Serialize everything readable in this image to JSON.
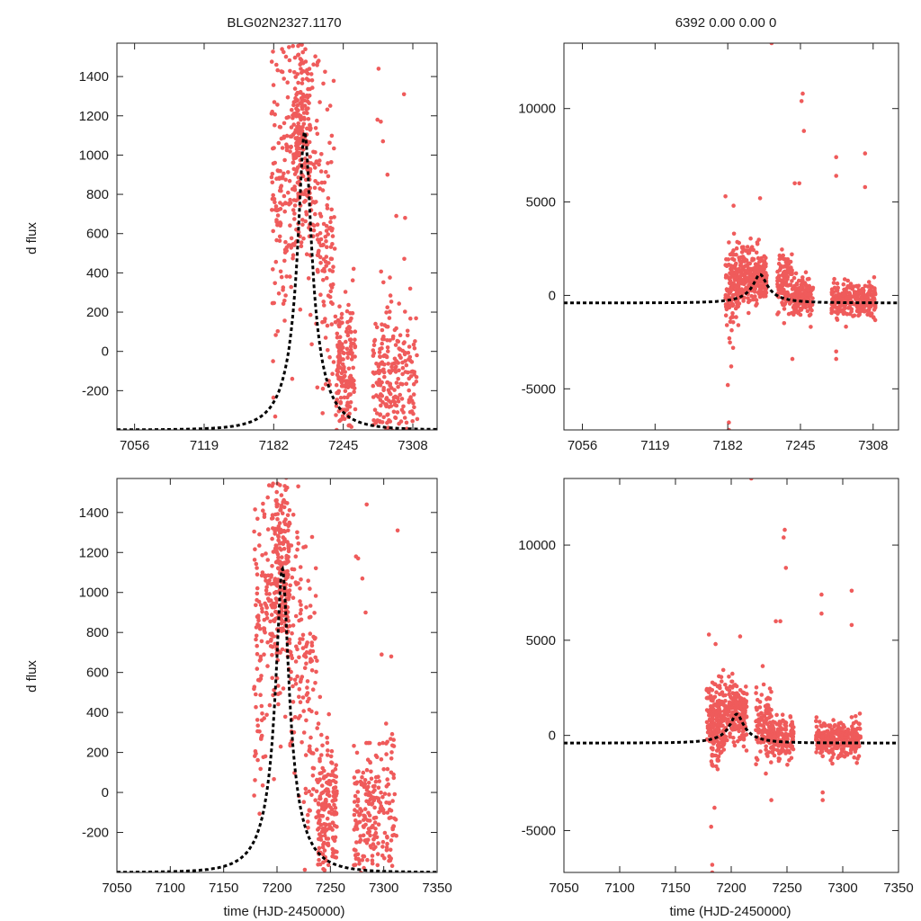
{
  "header": {
    "left_title": "BLG02N2327.1170",
    "right_title": "6392  0.00  0.00  0"
  },
  "colors": {
    "points": "#ef5b5b",
    "model": "#000000"
  },
  "chart_data": [
    {
      "id": "top-left",
      "type": "scatter",
      "title": "BLG02N2327.1170",
      "ylabel": "d flux",
      "xlabel": "",
      "xlim": [
        7040,
        7330
      ],
      "ylim": [
        -400,
        1570
      ],
      "xticks": [
        7056,
        7119,
        7182,
        7245,
        7308
      ],
      "xtick_labels": [
        "7056",
        "7119",
        "7182",
        "7245",
        "7308"
      ],
      "yticks": [
        -200,
        0,
        200,
        400,
        600,
        800,
        1000,
        1200,
        1400
      ],
      "ytick_labels": [
        "-200",
        "0",
        "200",
        "400",
        "600",
        "800",
        "1000",
        "1200",
        "1400"
      ],
      "model": {
        "t0": 7210,
        "peak": 1120,
        "base": -400,
        "u0": 0.18,
        "tE": 32
      },
      "segments": [
        {
          "x0": 7180,
          "x1": 7192,
          "n": 90,
          "mu": 820,
          "sd": 420
        },
        {
          "x0": 7192,
          "x1": 7200,
          "n": 60,
          "mu": 980,
          "sd": 320
        },
        {
          "x0": 7200,
          "x1": 7215,
          "n": 230,
          "mu": 1090,
          "sd": 260
        },
        {
          "x0": 7215,
          "x1": 7226,
          "n": 70,
          "mu": 870,
          "sd": 380
        },
        {
          "x0": 7226,
          "x1": 7238,
          "n": 80,
          "mu": 450,
          "sd": 380
        },
        {
          "x0": 7238,
          "x1": 7256,
          "n": 190,
          "mu": -120,
          "sd": 200
        },
        {
          "x0": 7272,
          "x1": 7296,
          "n": 170,
          "mu": -150,
          "sd": 190
        },
        {
          "x0": 7296,
          "x1": 7312,
          "n": 70,
          "mu": -90,
          "sd": 190
        }
      ],
      "extra_points": [
        [
          7277,
          1440
        ],
        [
          7300,
          1310
        ],
        [
          7279,
          1170
        ],
        [
          7281,
          1070
        ],
        [
          7285,
          900
        ],
        [
          7293,
          690
        ],
        [
          7301,
          680
        ],
        [
          7276,
          1180
        ]
      ]
    },
    {
      "id": "top-right",
      "type": "scatter",
      "title": "6392  0.00  0.00  0",
      "ylabel": "",
      "xlabel": "",
      "xlim": [
        7040,
        7330
      ],
      "ylim": [
        -7200,
        13500
      ],
      "xticks": [
        7056,
        7119,
        7182,
        7245,
        7308
      ],
      "xtick_labels": [
        "7056",
        "7119",
        "7182",
        "7245",
        "7308"
      ],
      "yticks": [
        -5000,
        0,
        5000,
        10000
      ],
      "ytick_labels": [
        "-5000",
        "0",
        "5000",
        "10000"
      ],
      "model": {
        "t0": 7210,
        "peak": 1120,
        "base": -400,
        "u0": 0.18,
        "tE": 32
      },
      "segments": [
        {
          "x0": 7180,
          "x1": 7192,
          "n": 150,
          "mu": 500,
          "sd": 1100
        },
        {
          "x0": 7192,
          "x1": 7205,
          "n": 140,
          "mu": 1050,
          "sd": 900
        },
        {
          "x0": 7205,
          "x1": 7216,
          "n": 130,
          "mu": 1100,
          "sd": 700
        },
        {
          "x0": 7225,
          "x1": 7238,
          "n": 110,
          "mu": 700,
          "sd": 900
        },
        {
          "x0": 7238,
          "x1": 7256,
          "n": 160,
          "mu": -100,
          "sd": 500
        },
        {
          "x0": 7272,
          "x1": 7310,
          "n": 300,
          "mu": -250,
          "sd": 450
        }
      ],
      "extra_points": [
        [
          7220,
          13500
        ],
        [
          7247,
          10800
        ],
        [
          7246,
          10400
        ],
        [
          7248,
          8800
        ],
        [
          7244,
          6000
        ],
        [
          7240,
          6000
        ],
        [
          7276,
          7400
        ],
        [
          7276,
          6400
        ],
        [
          7301,
          7600
        ],
        [
          7301,
          5800
        ],
        [
          7183,
          -7200
        ],
        [
          7183,
          -6800
        ],
        [
          7182,
          -4800
        ],
        [
          7185,
          -3800
        ],
        [
          7238,
          -3400
        ],
        [
          7276,
          -3400
        ],
        [
          7276,
          -3000
        ],
        [
          7210,
          5200
        ],
        [
          7180,
          5300
        ],
        [
          7187,
          4800
        ]
      ]
    },
    {
      "id": "bottom-left",
      "type": "scatter",
      "title": "",
      "ylabel": "d flux",
      "xlabel": "time (HJD-2450000)",
      "xlim": [
        7050,
        7350
      ],
      "ylim": [
        -400,
        1570
      ],
      "xticks": [
        7050,
        7100,
        7150,
        7200,
        7250,
        7300,
        7350
      ],
      "xtick_labels": [
        "7050",
        "7100",
        "7150",
        "7200",
        "7250",
        "7300",
        "7350"
      ],
      "yticks": [
        -200,
        0,
        200,
        400,
        600,
        800,
        1000,
        1200,
        1400
      ],
      "ytick_labels": [
        "-200",
        "0",
        "200",
        "400",
        "600",
        "800",
        "1000",
        "1200",
        "1400"
      ],
      "model": {
        "t0": 7205,
        "peak": 1120,
        "base": -400,
        "u0": 0.18,
        "tE": 32
      },
      "segments": [
        {
          "x0": 7178,
          "x1": 7190,
          "n": 90,
          "mu": 820,
          "sd": 420
        },
        {
          "x0": 7190,
          "x1": 7198,
          "n": 60,
          "mu": 980,
          "sd": 320
        },
        {
          "x0": 7198,
          "x1": 7212,
          "n": 230,
          "mu": 1090,
          "sd": 260
        },
        {
          "x0": 7212,
          "x1": 7225,
          "n": 70,
          "mu": 870,
          "sd": 380
        },
        {
          "x0": 7225,
          "x1": 7238,
          "n": 80,
          "mu": 450,
          "sd": 380
        },
        {
          "x0": 7238,
          "x1": 7256,
          "n": 190,
          "mu": -120,
          "sd": 200
        },
        {
          "x0": 7272,
          "x1": 7296,
          "n": 170,
          "mu": -150,
          "sd": 190
        },
        {
          "x0": 7296,
          "x1": 7312,
          "n": 70,
          "mu": -90,
          "sd": 190
        }
      ],
      "extra_points": [
        [
          7284,
          1440
        ],
        [
          7313,
          1310
        ],
        [
          7276,
          1170
        ],
        [
          7280,
          1070
        ],
        [
          7283,
          900
        ],
        [
          7298,
          690
        ],
        [
          7307,
          680
        ],
        [
          7274,
          1180
        ]
      ]
    },
    {
      "id": "bottom-right",
      "type": "scatter",
      "title": "",
      "ylabel": "",
      "xlabel": "time (HJD-2450000)",
      "xlim": [
        7050,
        7350
      ],
      "ylim": [
        -7200,
        13500
      ],
      "xticks": [
        7050,
        7100,
        7150,
        7200,
        7250,
        7300,
        7350
      ],
      "xtick_labels": [
        "7050",
        "7100",
        "7150",
        "7200",
        "7250",
        "7300",
        "7350"
      ],
      "yticks": [
        -5000,
        0,
        5000,
        10000
      ],
      "ytick_labels": [
        "-5000",
        "0",
        "5000",
        "10000"
      ],
      "model": {
        "t0": 7205,
        "peak": 1120,
        "base": -400,
        "u0": 0.18,
        "tE": 32
      },
      "segments": [
        {
          "x0": 7178,
          "x1": 7190,
          "n": 150,
          "mu": 500,
          "sd": 1100
        },
        {
          "x0": 7190,
          "x1": 7203,
          "n": 140,
          "mu": 1050,
          "sd": 900
        },
        {
          "x0": 7203,
          "x1": 7214,
          "n": 130,
          "mu": 1100,
          "sd": 700
        },
        {
          "x0": 7222,
          "x1": 7236,
          "n": 110,
          "mu": 700,
          "sd": 900
        },
        {
          "x0": 7236,
          "x1": 7256,
          "n": 160,
          "mu": -100,
          "sd": 500
        },
        {
          "x0": 7276,
          "x1": 7316,
          "n": 300,
          "mu": -250,
          "sd": 450
        }
      ],
      "extra_points": [
        [
          7218,
          13500
        ],
        [
          7248,
          10800
        ],
        [
          7247,
          10400
        ],
        [
          7249,
          8800
        ],
        [
          7244,
          6000
        ],
        [
          7240,
          6000
        ],
        [
          7281,
          7400
        ],
        [
          7281,
          6400
        ],
        [
          7308,
          7600
        ],
        [
          7308,
          5800
        ],
        [
          7183,
          -7200
        ],
        [
          7183,
          -6800
        ],
        [
          7182,
          -4800
        ],
        [
          7185,
          -3800
        ],
        [
          7236,
          -3400
        ],
        [
          7282,
          -3400
        ],
        [
          7282,
          -3000
        ],
        [
          7208,
          5200
        ],
        [
          7180,
          5300
        ],
        [
          7186,
          4800
        ]
      ]
    }
  ]
}
